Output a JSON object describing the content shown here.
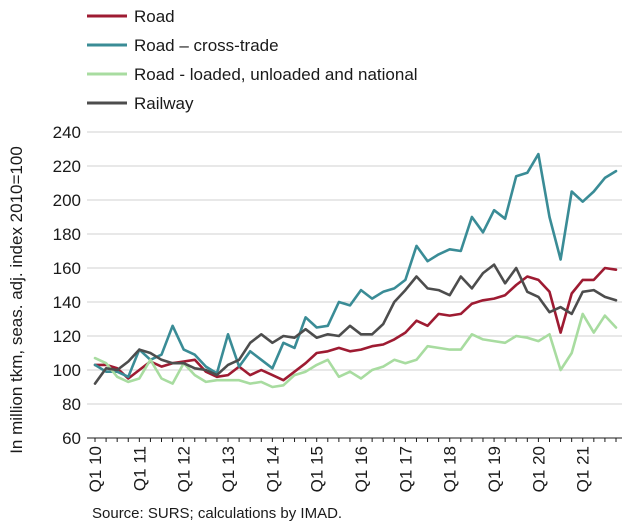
{
  "chart_data": {
    "type": "line",
    "title": "",
    "xlabel": "",
    "ylabel": "In million tkm, seas. adj. index 2010=100",
    "ylim": [
      60,
      240
    ],
    "yticks": [
      60,
      80,
      100,
      120,
      140,
      160,
      180,
      200,
      220,
      240
    ],
    "grid": true,
    "legend_position": "top-left",
    "x_tick_labels": [
      "Q1 10",
      "Q1 11",
      "Q1 12",
      "Q1 13",
      "Q1 14",
      "Q1 15",
      "Q1 16",
      "Q1 17",
      "Q1 18",
      "Q1 19",
      "Q1 20",
      "Q1 21"
    ],
    "x": [
      "Q1 10",
      "Q2 10",
      "Q3 10",
      "Q4 10",
      "Q1 11",
      "Q2 11",
      "Q3 11",
      "Q4 11",
      "Q1 12",
      "Q2 12",
      "Q3 12",
      "Q4 12",
      "Q1 13",
      "Q2 13",
      "Q3 13",
      "Q4 13",
      "Q1 14",
      "Q2 14",
      "Q3 14",
      "Q4 14",
      "Q1 15",
      "Q2 15",
      "Q3 15",
      "Q4 15",
      "Q1 16",
      "Q2 16",
      "Q3 16",
      "Q4 16",
      "Q1 17",
      "Q2 17",
      "Q3 17",
      "Q4 17",
      "Q1 18",
      "Q2 18",
      "Q3 18",
      "Q4 18",
      "Q1 19",
      "Q2 19",
      "Q3 19",
      "Q4 19",
      "Q1 20",
      "Q2 20",
      "Q3 20",
      "Q4 20",
      "Q1 21",
      "Q2 21",
      "Q3 21",
      "Q4 21"
    ],
    "series": [
      {
        "name": "Road",
        "color": "#9e1b32",
        "values": [
          103,
          103,
          101,
          95,
          100,
          105,
          102,
          104,
          105,
          106,
          99,
          96,
          97,
          102,
          97,
          100,
          97,
          94,
          99,
          104,
          110,
          111,
          113,
          111,
          112,
          114,
          115,
          118,
          122,
          129,
          126,
          133,
          132,
          133,
          139,
          141,
          142,
          144,
          150,
          155,
          153,
          146,
          122,
          145,
          153,
          153,
          160,
          159
        ]
      },
      {
        "name": "Road – cross-trade",
        "color": "#3a8c96",
        "values": [
          103,
          99,
          99,
          96,
          112,
          106,
          109,
          126,
          112,
          109,
          102,
          98,
          121,
          102,
          111,
          106,
          101,
          116,
          113,
          131,
          125,
          126,
          140,
          138,
          147,
          142,
          146,
          148,
          153,
          173,
          164,
          168,
          171,
          170,
          190,
          181,
          194,
          189,
          214,
          216,
          227,
          190,
          165,
          205,
          199,
          205,
          213,
          217
        ]
      },
      {
        "name": "Road - loaded, unloaded and national",
        "color": "#a8dca0",
        "values": [
          107,
          104,
          96,
          93,
          95,
          106,
          95,
          92,
          104,
          97,
          93,
          94,
          94,
          94,
          92,
          93,
          90,
          91,
          97,
          99,
          103,
          106,
          96,
          99,
          95,
          100,
          102,
          106,
          104,
          106,
          114,
          113,
          112,
          112,
          121,
          118,
          117,
          116,
          120,
          119,
          117,
          121,
          100,
          110,
          133,
          122,
          132,
          125
        ]
      },
      {
        "name": "Railway",
        "color": "#4d4d4d",
        "values": [
          92,
          101,
          100,
          105,
          112,
          110,
          106,
          104,
          104,
          101,
          100,
          97,
          103,
          106,
          116,
          121,
          116,
          120,
          119,
          124,
          119,
          121,
          120,
          126,
          121,
          121,
          127,
          140,
          147,
          155,
          148,
          147,
          144,
          155,
          148,
          157,
          162,
          151,
          160,
          146,
          143,
          134,
          137,
          133,
          146,
          147,
          143,
          141
        ]
      }
    ]
  },
  "source_note": "Source: SURS; calculations by IMAD."
}
